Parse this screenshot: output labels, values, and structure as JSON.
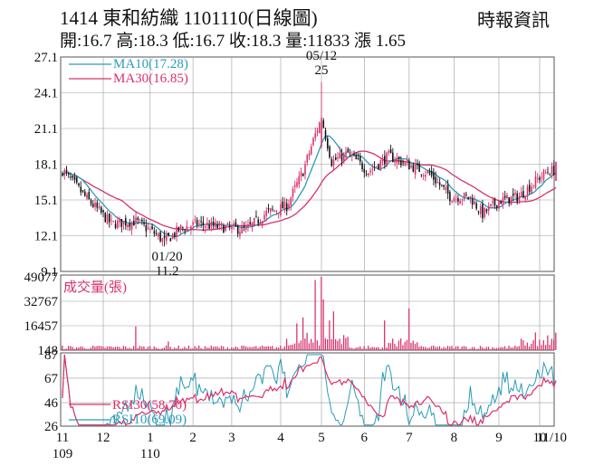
{
  "header": {
    "title": "1414  東和紡織 1101110(日線圖)",
    "source": "時報資訊",
    "stats": "開:16.7 高:18.3 低:16.7 收:18.3 量:11833 漲 1.65"
  },
  "chart_data": [
    {
      "type": "candlestick",
      "panel": "price",
      "y_ticks": [
        "27.1",
        "24.1",
        "21.1",
        "18.1",
        "15.1",
        "12.1",
        "9.1"
      ],
      "ylim": [
        9.1,
        27.1
      ],
      "legend": [
        {
          "name": "MA10(17.28)",
          "color": "#2a9bb8"
        },
        {
          "name": "MA30(16.85)",
          "color": "#d8306c"
        }
      ],
      "annotations": [
        {
          "date": "05/12",
          "value": "25"
        },
        {
          "date": "01/20",
          "value": "11.2"
        }
      ],
      "summary_points": [
        {
          "date": "11/09",
          "close": 17.6
        },
        {
          "date": "12/01",
          "close": 13.1
        },
        {
          "date": "01/20",
          "close": 11.6
        },
        {
          "date": "03/01",
          "close": 12.6
        },
        {
          "date": "04/01",
          "close": 14.6
        },
        {
          "date": "05/12",
          "close": 22.0
        },
        {
          "date": "06/01",
          "close": 18.7
        },
        {
          "date": "07/01",
          "close": 17.9
        },
        {
          "date": "08/02",
          "close": 15.4
        },
        {
          "date": "08/26",
          "close": 13.9
        },
        {
          "date": "10/01",
          "close": 16.3
        },
        {
          "date": "11/10",
          "close": 18.3
        }
      ]
    },
    {
      "type": "bar",
      "panel": "volume",
      "title": "成交量(張)",
      "y_ticks": [
        "49077",
        "32767",
        "16457",
        "148"
      ],
      "ylim": [
        148,
        49077
      ],
      "last_value": 11833
    },
    {
      "type": "line",
      "panel": "rsi",
      "y_ticks": [
        "87",
        "67",
        "46",
        "26"
      ],
      "ylim": [
        26,
        87
      ],
      "series": [
        {
          "name": "RSI30(58.70)",
          "color": "#d8306c"
        },
        {
          "name": "RSI10(69.09)",
          "color": "#2a9bb8"
        }
      ]
    }
  ],
  "x_axis": {
    "labels": [
      {
        "text": "11",
        "sub": "109"
      },
      {
        "text": "12",
        "sub": ""
      },
      {
        "text": "1",
        "sub": "110"
      },
      {
        "text": "2",
        "sub": ""
      },
      {
        "text": "3",
        "sub": ""
      },
      {
        "text": "4",
        "sub": ""
      },
      {
        "text": "5",
        "sub": ""
      },
      {
        "text": "6",
        "sub": ""
      },
      {
        "text": "7",
        "sub": ""
      },
      {
        "text": "8",
        "sub": ""
      },
      {
        "text": "9",
        "sub": ""
      },
      {
        "text": "10",
        "sub": ""
      },
      {
        "text": "11/10",
        "sub": ""
      }
    ]
  },
  "colors": {
    "up": "#d8306c",
    "down": "#111111",
    "ma10": "#2a9bb8",
    "ma30": "#d8306c",
    "volume": "#d8306c",
    "grid": "#9a9a9a"
  }
}
